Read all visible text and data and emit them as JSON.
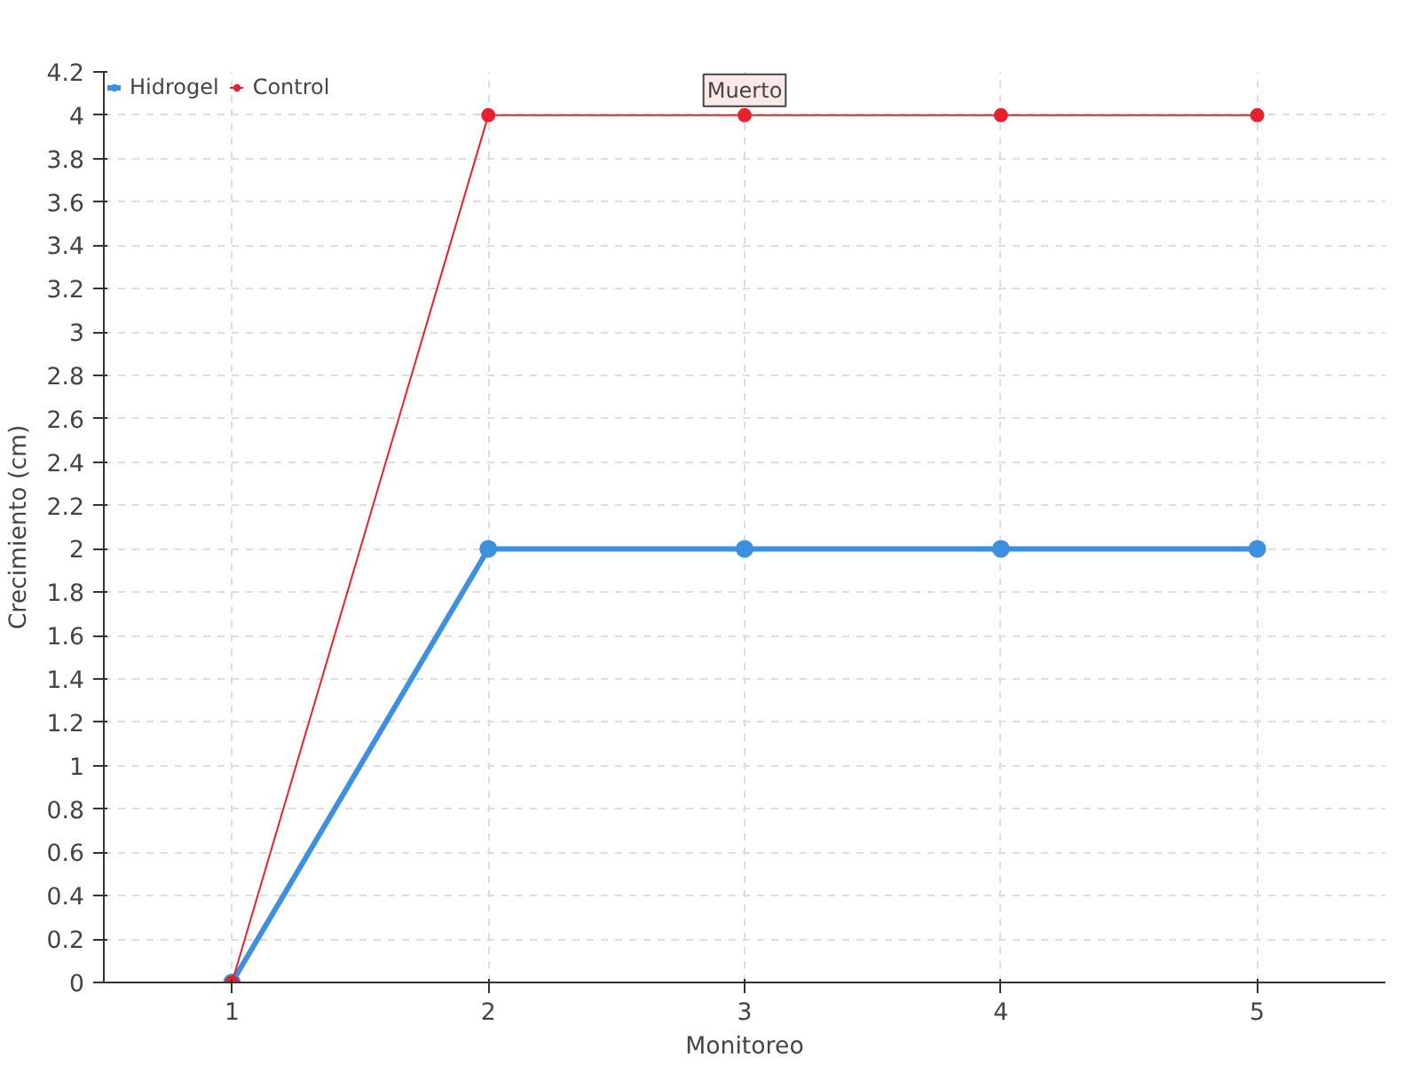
{
  "chart_data": {
    "type": "line",
    "xlabel": "Monitoreo",
    "ylabel": "Crecimiento (cm)",
    "x": [
      1,
      2,
      3,
      4,
      5
    ],
    "xlim": [
      0.5,
      5.5
    ],
    "xticks": [
      1,
      2,
      3,
      4,
      5
    ],
    "ylim": [
      0,
      4.2
    ],
    "yticks": [
      0,
      0.2,
      0.4,
      0.6,
      0.8,
      1,
      1.2,
      1.4,
      1.6,
      1.8,
      2,
      2.2,
      2.4,
      2.6,
      2.8,
      3,
      3.2,
      3.4,
      3.6,
      3.8,
      4,
      4.2
    ],
    "series": [
      {
        "name": "Hidrogel",
        "color": "#3d8fe0",
        "values": [
          0,
          2,
          2,
          2,
          2
        ]
      },
      {
        "name": "Control",
        "color": "#e8212e",
        "values": [
          0,
          4,
          4,
          4,
          4
        ]
      }
    ],
    "annotations": [
      {
        "text": "Muerto",
        "x": 3,
        "y": 4
      }
    ],
    "grid": true,
    "legend": "top left",
    "marker": "circle",
    "line_style": "solid"
  }
}
